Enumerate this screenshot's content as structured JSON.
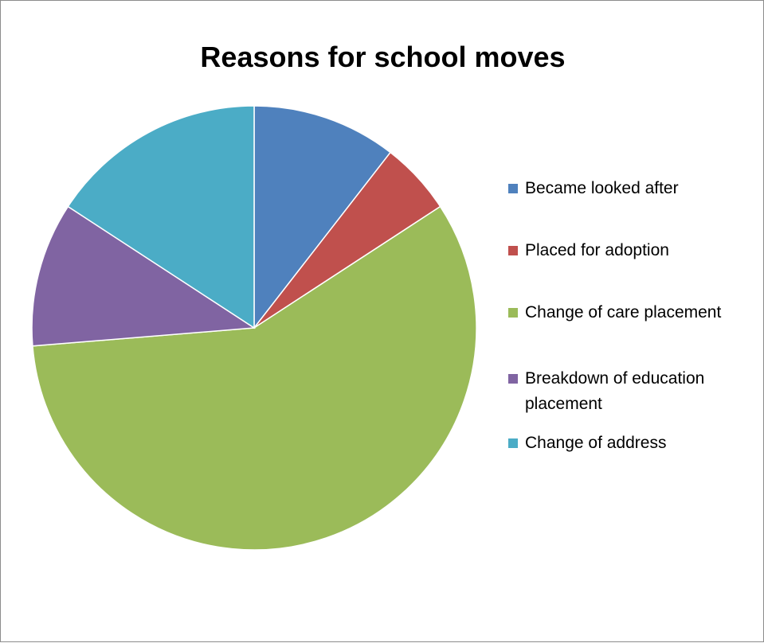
{
  "chart_data": {
    "type": "pie",
    "title": "Reasons for school moves",
    "legend_position": "right",
    "categories": [
      "Became looked after",
      "Placed for adoption",
      "Change of care placement",
      "Breakdown of education placement",
      "Change of address"
    ],
    "values": [
      10.5,
      5.3,
      57.9,
      10.5,
      15.8
    ],
    "colors": [
      "#4f81bd",
      "#c0504d",
      "#9bbb59",
      "#8064a2",
      "#4bacc6"
    ]
  }
}
